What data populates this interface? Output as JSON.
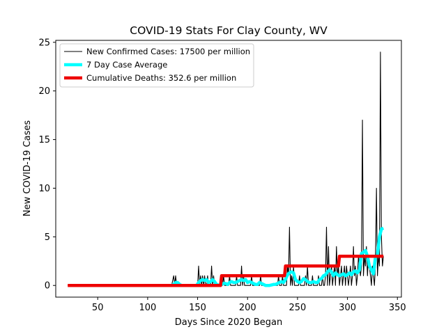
{
  "chart_data": {
    "type": "line",
    "title": "COVID-19 Stats For Clay County, WV",
    "xlabel": "Days Since 2020 Began",
    "ylabel": "New COVID-19 Cases",
    "xlim": [
      8,
      354
    ],
    "ylim": [
      -1.2,
      25.2
    ],
    "x_ticks": [
      50,
      100,
      150,
      200,
      250,
      300,
      350
    ],
    "y_ticks": [
      0,
      5,
      10,
      15,
      20,
      25
    ],
    "grid": false,
    "legend_position": "top-left",
    "series": [
      {
        "name": "New Confirmed Cases: 17500 per million",
        "color": "#000000",
        "points": [
          [
            20,
            0
          ],
          [
            124,
            0
          ],
          [
            126,
            1
          ],
          [
            127,
            0
          ],
          [
            128,
            1
          ],
          [
            129,
            0
          ],
          [
            150,
            0
          ],
          [
            151,
            2
          ],
          [
            152,
            0
          ],
          [
            153,
            1
          ],
          [
            154,
            0
          ],
          [
            155,
            1
          ],
          [
            156,
            0
          ],
          [
            157,
            1
          ],
          [
            158,
            0
          ],
          [
            159,
            0
          ],
          [
            160,
            1
          ],
          [
            161,
            0
          ],
          [
            163,
            0
          ],
          [
            164,
            2
          ],
          [
            165,
            0
          ],
          [
            166,
            1
          ],
          [
            167,
            0
          ],
          [
            175,
            0
          ],
          [
            176,
            1
          ],
          [
            177,
            0
          ],
          [
            181,
            0
          ],
          [
            182,
            1
          ],
          [
            183,
            0
          ],
          [
            188,
            0
          ],
          [
            189,
            1
          ],
          [
            190,
            0
          ],
          [
            193,
            0
          ],
          [
            194,
            2
          ],
          [
            195,
            0
          ],
          [
            196,
            1
          ],
          [
            197,
            0
          ],
          [
            203,
            0
          ],
          [
            204,
            1
          ],
          [
            205,
            0
          ],
          [
            212,
            0
          ],
          [
            213,
            1
          ],
          [
            214,
            0
          ],
          [
            230,
            0
          ],
          [
            231,
            1
          ],
          [
            232,
            0
          ],
          [
            234,
            0
          ],
          [
            235,
            1
          ],
          [
            236,
            0
          ],
          [
            239,
            0
          ],
          [
            240,
            2
          ],
          [
            241,
            1
          ],
          [
            242,
            6
          ],
          [
            243,
            0
          ],
          [
            244,
            1
          ],
          [
            245,
            0
          ],
          [
            246,
            2
          ],
          [
            247,
            0
          ],
          [
            251,
            0
          ],
          [
            252,
            1
          ],
          [
            253,
            0
          ],
          [
            257,
            0
          ],
          [
            258,
            1
          ],
          [
            259,
            0
          ],
          [
            260,
            2
          ],
          [
            261,
            0
          ],
          [
            264,
            0
          ],
          [
            265,
            1
          ],
          [
            266,
            0
          ],
          [
            270,
            0
          ],
          [
            271,
            1
          ],
          [
            272,
            0
          ],
          [
            274,
            0
          ],
          [
            275,
            1
          ],
          [
            276,
            0
          ],
          [
            277,
            0
          ],
          [
            278,
            1
          ],
          [
            279,
            6
          ],
          [
            280,
            0
          ],
          [
            281,
            4
          ],
          [
            282,
            0
          ],
          [
            283,
            1
          ],
          [
            284,
            2
          ],
          [
            285,
            0
          ],
          [
            286,
            1
          ],
          [
            287,
            2
          ],
          [
            288,
            0
          ],
          [
            289,
            4
          ],
          [
            290,
            1
          ],
          [
            291,
            2
          ],
          [
            292,
            0
          ],
          [
            293,
            1
          ],
          [
            294,
            2
          ],
          [
            295,
            0
          ],
          [
            296,
            1
          ],
          [
            297,
            2
          ],
          [
            298,
            0
          ],
          [
            299,
            2
          ],
          [
            300,
            1
          ],
          [
            301,
            0
          ],
          [
            302,
            1
          ],
          [
            303,
            2
          ],
          [
            304,
            0
          ],
          [
            305,
            1
          ],
          [
            306,
            4
          ],
          [
            307,
            1
          ],
          [
            308,
            2
          ],
          [
            309,
            0
          ],
          [
            310,
            1
          ],
          [
            311,
            3
          ],
          [
            312,
            2
          ],
          [
            313,
            1
          ],
          [
            314,
            2
          ],
          [
            315,
            17
          ],
          [
            316,
            1
          ],
          [
            317,
            3
          ],
          [
            318,
            2
          ],
          [
            319,
            4
          ],
          [
            320,
            1
          ],
          [
            321,
            3
          ],
          [
            322,
            2
          ],
          [
            323,
            1
          ],
          [
            324,
            0
          ],
          [
            325,
            2
          ],
          [
            326,
            1
          ],
          [
            327,
            0
          ],
          [
            328,
            2
          ],
          [
            329,
            10
          ],
          [
            330,
            1
          ],
          [
            331,
            3
          ],
          [
            332,
            2
          ],
          [
            333,
            24
          ],
          [
            334,
            5
          ],
          [
            335,
            2
          ],
          [
            336,
            3
          ]
        ]
      },
      {
        "name": "7 Day Case Average",
        "color": "#00ffff",
        "points": [
          [
            124,
            0
          ],
          [
            126,
            0.1
          ],
          [
            128,
            0.3
          ],
          [
            130,
            0.3
          ],
          [
            132,
            0.1
          ],
          [
            134,
            0
          ],
          [
            149,
            0
          ],
          [
            151,
            0.3
          ],
          [
            153,
            0.5
          ],
          [
            155,
            0.6
          ],
          [
            157,
            0.5
          ],
          [
            159,
            0.6
          ],
          [
            161,
            0.3
          ],
          [
            163,
            0.4
          ],
          [
            165,
            0.6
          ],
          [
            167,
            0.4
          ],
          [
            169,
            0.1
          ],
          [
            172,
            0
          ],
          [
            174,
            0.1
          ],
          [
            176,
            0.2
          ],
          [
            178,
            0.2
          ],
          [
            180,
            0.1
          ],
          [
            182,
            0.3
          ],
          [
            184,
            0.4
          ],
          [
            186,
            0.3
          ],
          [
            188,
            0.3
          ],
          [
            190,
            0.4
          ],
          [
            192,
            0.5
          ],
          [
            194,
            0.6
          ],
          [
            196,
            0.5
          ],
          [
            198,
            0.6
          ],
          [
            200,
            0.3
          ],
          [
            202,
            0.4
          ],
          [
            204,
            0.3
          ],
          [
            206,
            0.2
          ],
          [
            208,
            0.1
          ],
          [
            210,
            0.1
          ],
          [
            212,
            0.3
          ],
          [
            214,
            0.2
          ],
          [
            216,
            0.1
          ],
          [
            218,
            0
          ],
          [
            222,
            0
          ],
          [
            226,
            0.1
          ],
          [
            228,
            0.1
          ],
          [
            230,
            0.2
          ],
          [
            232,
            0.3
          ],
          [
            234,
            0.4
          ],
          [
            236,
            0.3
          ],
          [
            238,
            0.6
          ],
          [
            240,
            1.1
          ],
          [
            242,
            1.3
          ],
          [
            244,
            1.4
          ],
          [
            246,
            1.3
          ],
          [
            248,
            0.6
          ],
          [
            250,
            0.4
          ],
          [
            252,
            0.3
          ],
          [
            254,
            0.4
          ],
          [
            256,
            0.7
          ],
          [
            258,
            0.6
          ],
          [
            260,
            0.4
          ],
          [
            262,
            0.3
          ],
          [
            264,
            0.3
          ],
          [
            266,
            0.4
          ],
          [
            268,
            0.3
          ],
          [
            270,
            0.3
          ],
          [
            272,
            0.6
          ],
          [
            274,
            0.7
          ],
          [
            276,
            1.0
          ],
          [
            278,
            1.1
          ],
          [
            280,
            1.4
          ],
          [
            282,
            1.6
          ],
          [
            284,
            1.4
          ],
          [
            286,
            1.0
          ],
          [
            288,
            1.3
          ],
          [
            290,
            1.1
          ],
          [
            292,
            1.0
          ],
          [
            294,
            1.1
          ],
          [
            296,
            1.2
          ],
          [
            298,
            1.0
          ],
          [
            300,
            1.1
          ],
          [
            302,
            1.3
          ],
          [
            304,
            1.1
          ],
          [
            306,
            1.4
          ],
          [
            308,
            1.5
          ],
          [
            310,
            1.3
          ],
          [
            312,
            1.6
          ],
          [
            314,
            3.3
          ],
          [
            316,
            3.4
          ],
          [
            318,
            3.6
          ],
          [
            320,
            3.0
          ],
          [
            322,
            2.0
          ],
          [
            324,
            1.6
          ],
          [
            326,
            1.2
          ],
          [
            328,
            2.9
          ],
          [
            330,
            3.1
          ],
          [
            332,
            5.0
          ],
          [
            334,
            5.8
          ],
          [
            336,
            5.9
          ]
        ]
      },
      {
        "name": "Cumulative Deaths: 352.6 per million",
        "color": "#ee0000",
        "points": [
          [
            20,
            0
          ],
          [
            173,
            0
          ],
          [
            174,
            1
          ],
          [
            237,
            1
          ],
          [
            238,
            2
          ],
          [
            291,
            2
          ],
          [
            292,
            3
          ],
          [
            336,
            3
          ]
        ]
      }
    ]
  }
}
